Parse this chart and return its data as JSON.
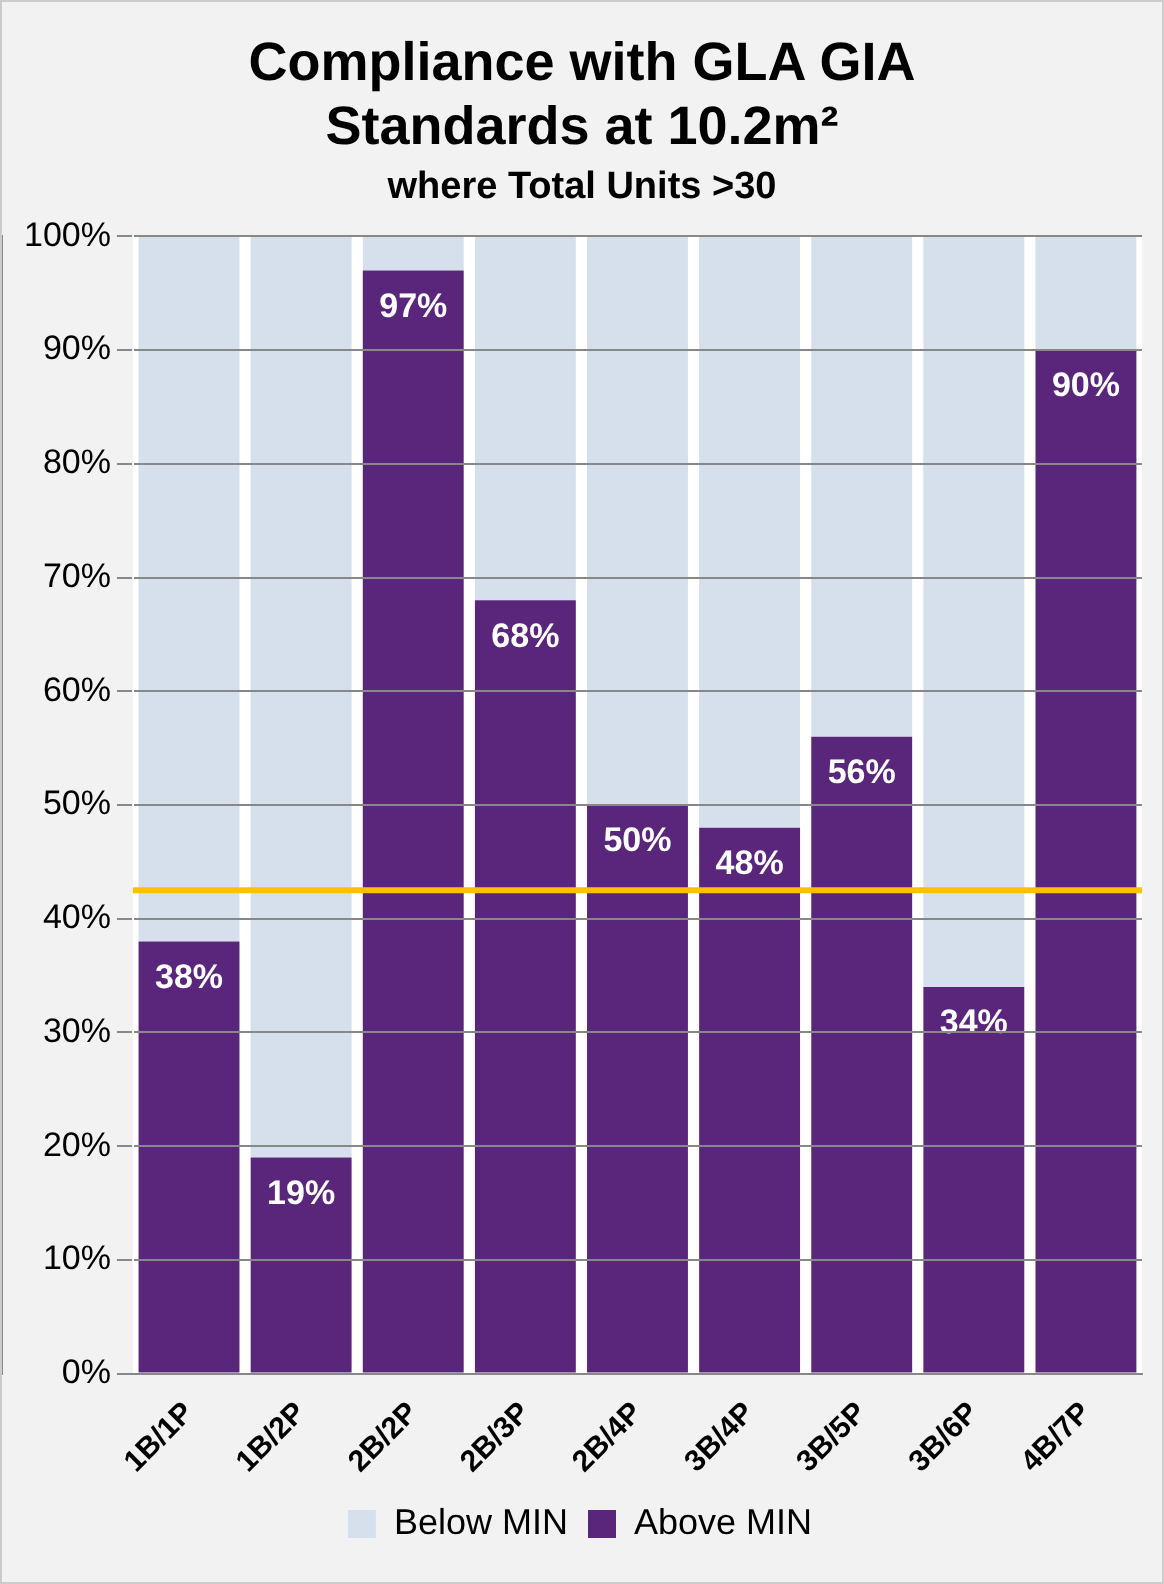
{
  "chart_data": {
    "type": "bar",
    "title": "Compliance with GLA GIA Standards at 10.2m²",
    "subtitle": "where Total Units >30",
    "categories": [
      "1B/1P",
      "1B/2P",
      "2B/2P",
      "2B/3P",
      "2B/4P",
      "3B/4P",
      "3B/5P",
      "3B/6P",
      "4B/7P"
    ],
    "stacked": true,
    "series": [
      {
        "name": "Above MIN",
        "color": "#59267c",
        "values": [
          38,
          19,
          97,
          68,
          50,
          48,
          56,
          34,
          90
        ],
        "value_labels": [
          "38%",
          "19%",
          "97%",
          "68%",
          "50%",
          "48%",
          "56%",
          "34%",
          "90%"
        ]
      },
      {
        "name": "Below MIN",
        "color": "#d6e0ec",
        "values": [
          62,
          81,
          3,
          32,
          50,
          52,
          44,
          66,
          10
        ]
      }
    ],
    "ylim": [
      0,
      100
    ],
    "yticks": [
      {
        "value": 0,
        "label": "0%"
      },
      {
        "value": 10,
        "label": "10%"
      },
      {
        "value": 20,
        "label": "20%"
      },
      {
        "value": 30,
        "label": "30%"
      },
      {
        "value": 40,
        "label": "40%"
      },
      {
        "value": 50,
        "label": "50%"
      },
      {
        "value": 60,
        "label": "60%"
      },
      {
        "value": 70,
        "label": "70%"
      },
      {
        "value": 80,
        "label": "80%"
      },
      {
        "value": 90,
        "label": "90%"
      },
      {
        "value": 100,
        "label": "100%"
      }
    ],
    "ref_lines": [
      {
        "axis": "y",
        "value": 42.5,
        "color": "#ffc000"
      }
    ],
    "grid": "y",
    "legend": "bottom"
  }
}
